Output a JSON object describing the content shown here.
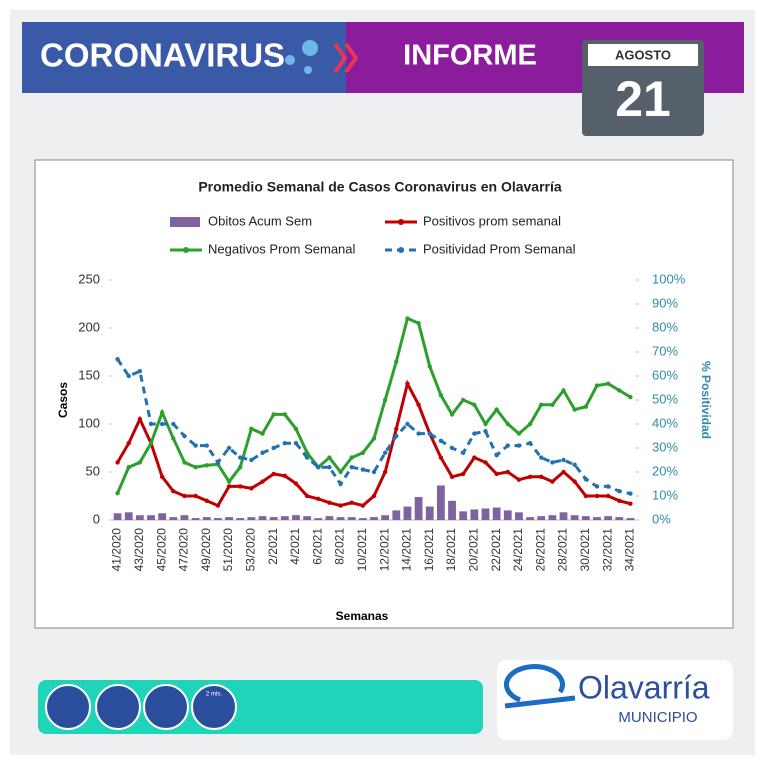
{
  "header": {
    "title": "CORONAVIRUS",
    "section": "INFORME",
    "month": "AGOSTO",
    "day": "21"
  },
  "chart_data": {
    "type": "combo",
    "title": "Promedio Semanal de Casos Coronavirus en Olavarría",
    "x_label": "Semanas",
    "y_label": "Casos",
    "y2_label": "% Positividad",
    "categories": [
      "41/2020",
      null,
      "43/2020",
      null,
      "45/2020",
      null,
      "47/2020",
      null,
      "49/2020",
      null,
      "51/2020",
      null,
      "53/2020",
      null,
      "2/2021",
      null,
      "4/2021",
      null,
      "6/2021",
      null,
      "8/2021",
      null,
      "10/2021",
      null,
      "12/2021",
      null,
      "14/2021",
      null,
      "16/2021",
      null,
      "18/2021",
      null,
      "20/2021",
      null,
      "22/2021",
      null,
      "24/2021",
      null,
      "26/2021",
      null,
      "28/2021",
      null,
      "30/2021",
      null,
      "32/2021",
      null,
      "34/2021"
    ],
    "series": [
      {
        "name": "Obitos Acum Sem",
        "kind": "bar",
        "color": "#7f63a1",
        "values": [
          7,
          8,
          5,
          5,
          7,
          3,
          5,
          2,
          3,
          2,
          3,
          2,
          3,
          4,
          3,
          4,
          5,
          4,
          2,
          4,
          3,
          3,
          2,
          3,
          5,
          10,
          14,
          24,
          14,
          36,
          20,
          9,
          11,
          12,
          13,
          10,
          8,
          3,
          4,
          5,
          8,
          5,
          4,
          3,
          4,
          3,
          2
        ]
      },
      {
        "name": "Positivos prom semanal",
        "kind": "line",
        "color": "#c00000",
        "values": [
          60,
          80,
          105,
          80,
          45,
          30,
          25,
          25,
          20,
          15,
          35,
          35,
          33,
          40,
          48,
          46,
          38,
          25,
          22,
          18,
          15,
          18,
          15,
          25,
          50,
          95,
          142,
          120,
          90,
          65,
          45,
          48,
          65,
          60,
          48,
          50,
          42,
          45,
          45,
          40,
          50,
          40,
          25,
          25,
          25,
          20,
          17
        ]
      },
      {
        "name": "Negativos Prom Semanal",
        "kind": "line",
        "color": "#2ca02c",
        "values": [
          28,
          55,
          60,
          80,
          112,
          85,
          60,
          55,
          57,
          58,
          40,
          55,
          95,
          90,
          110,
          110,
          95,
          70,
          55,
          65,
          50,
          65,
          70,
          85,
          125,
          165,
          210,
          205,
          160,
          130,
          110,
          125,
          120,
          100,
          115,
          100,
          90,
          100,
          120,
          120,
          135,
          115,
          118,
          140,
          142,
          135,
          128
        ]
      },
      {
        "name": "Positividad Prom Semanal",
        "kind": "line",
        "style": "dashed",
        "axis": "y2",
        "color": "#2471b0",
        "values": [
          67,
          60,
          62,
          40,
          40,
          40,
          35,
          31,
          31,
          24,
          30,
          26,
          25,
          28,
          30,
          32,
          32,
          26,
          22,
          22,
          15,
          22,
          21,
          20,
          28,
          35,
          40,
          36,
          36,
          33,
          30,
          28,
          36,
          37,
          27,
          31,
          31,
          32,
          26,
          24,
          25,
          23,
          17,
          14,
          14,
          12,
          11
        ]
      }
    ],
    "ylim": [
      0,
      250
    ],
    "yticks": [
      0,
      50,
      100,
      150,
      200,
      250
    ],
    "y2lim": [
      0,
      100
    ],
    "y2ticks": [
      {
        "value": 0,
        "label": "0%"
      },
      {
        "value": 10,
        "label": "10%"
      },
      {
        "value": 20,
        "label": "20%"
      },
      {
        "value": 30,
        "label": "30%"
      },
      {
        "value": 40,
        "label": "40%"
      },
      {
        "value": 50,
        "label": "50%"
      },
      {
        "value": 60,
        "label": "60%"
      },
      {
        "value": 70,
        "label": "70%"
      },
      {
        "value": 80,
        "label": "80%"
      },
      {
        "value": 90,
        "label": "90%"
      },
      {
        "value": 100,
        "label": "100%"
      }
    ],
    "legend": "top",
    "grid": false
  },
  "footer": {
    "distance": "2 mts.",
    "logo": "Olavarría",
    "logo_sub": "MUNICIPIO"
  }
}
